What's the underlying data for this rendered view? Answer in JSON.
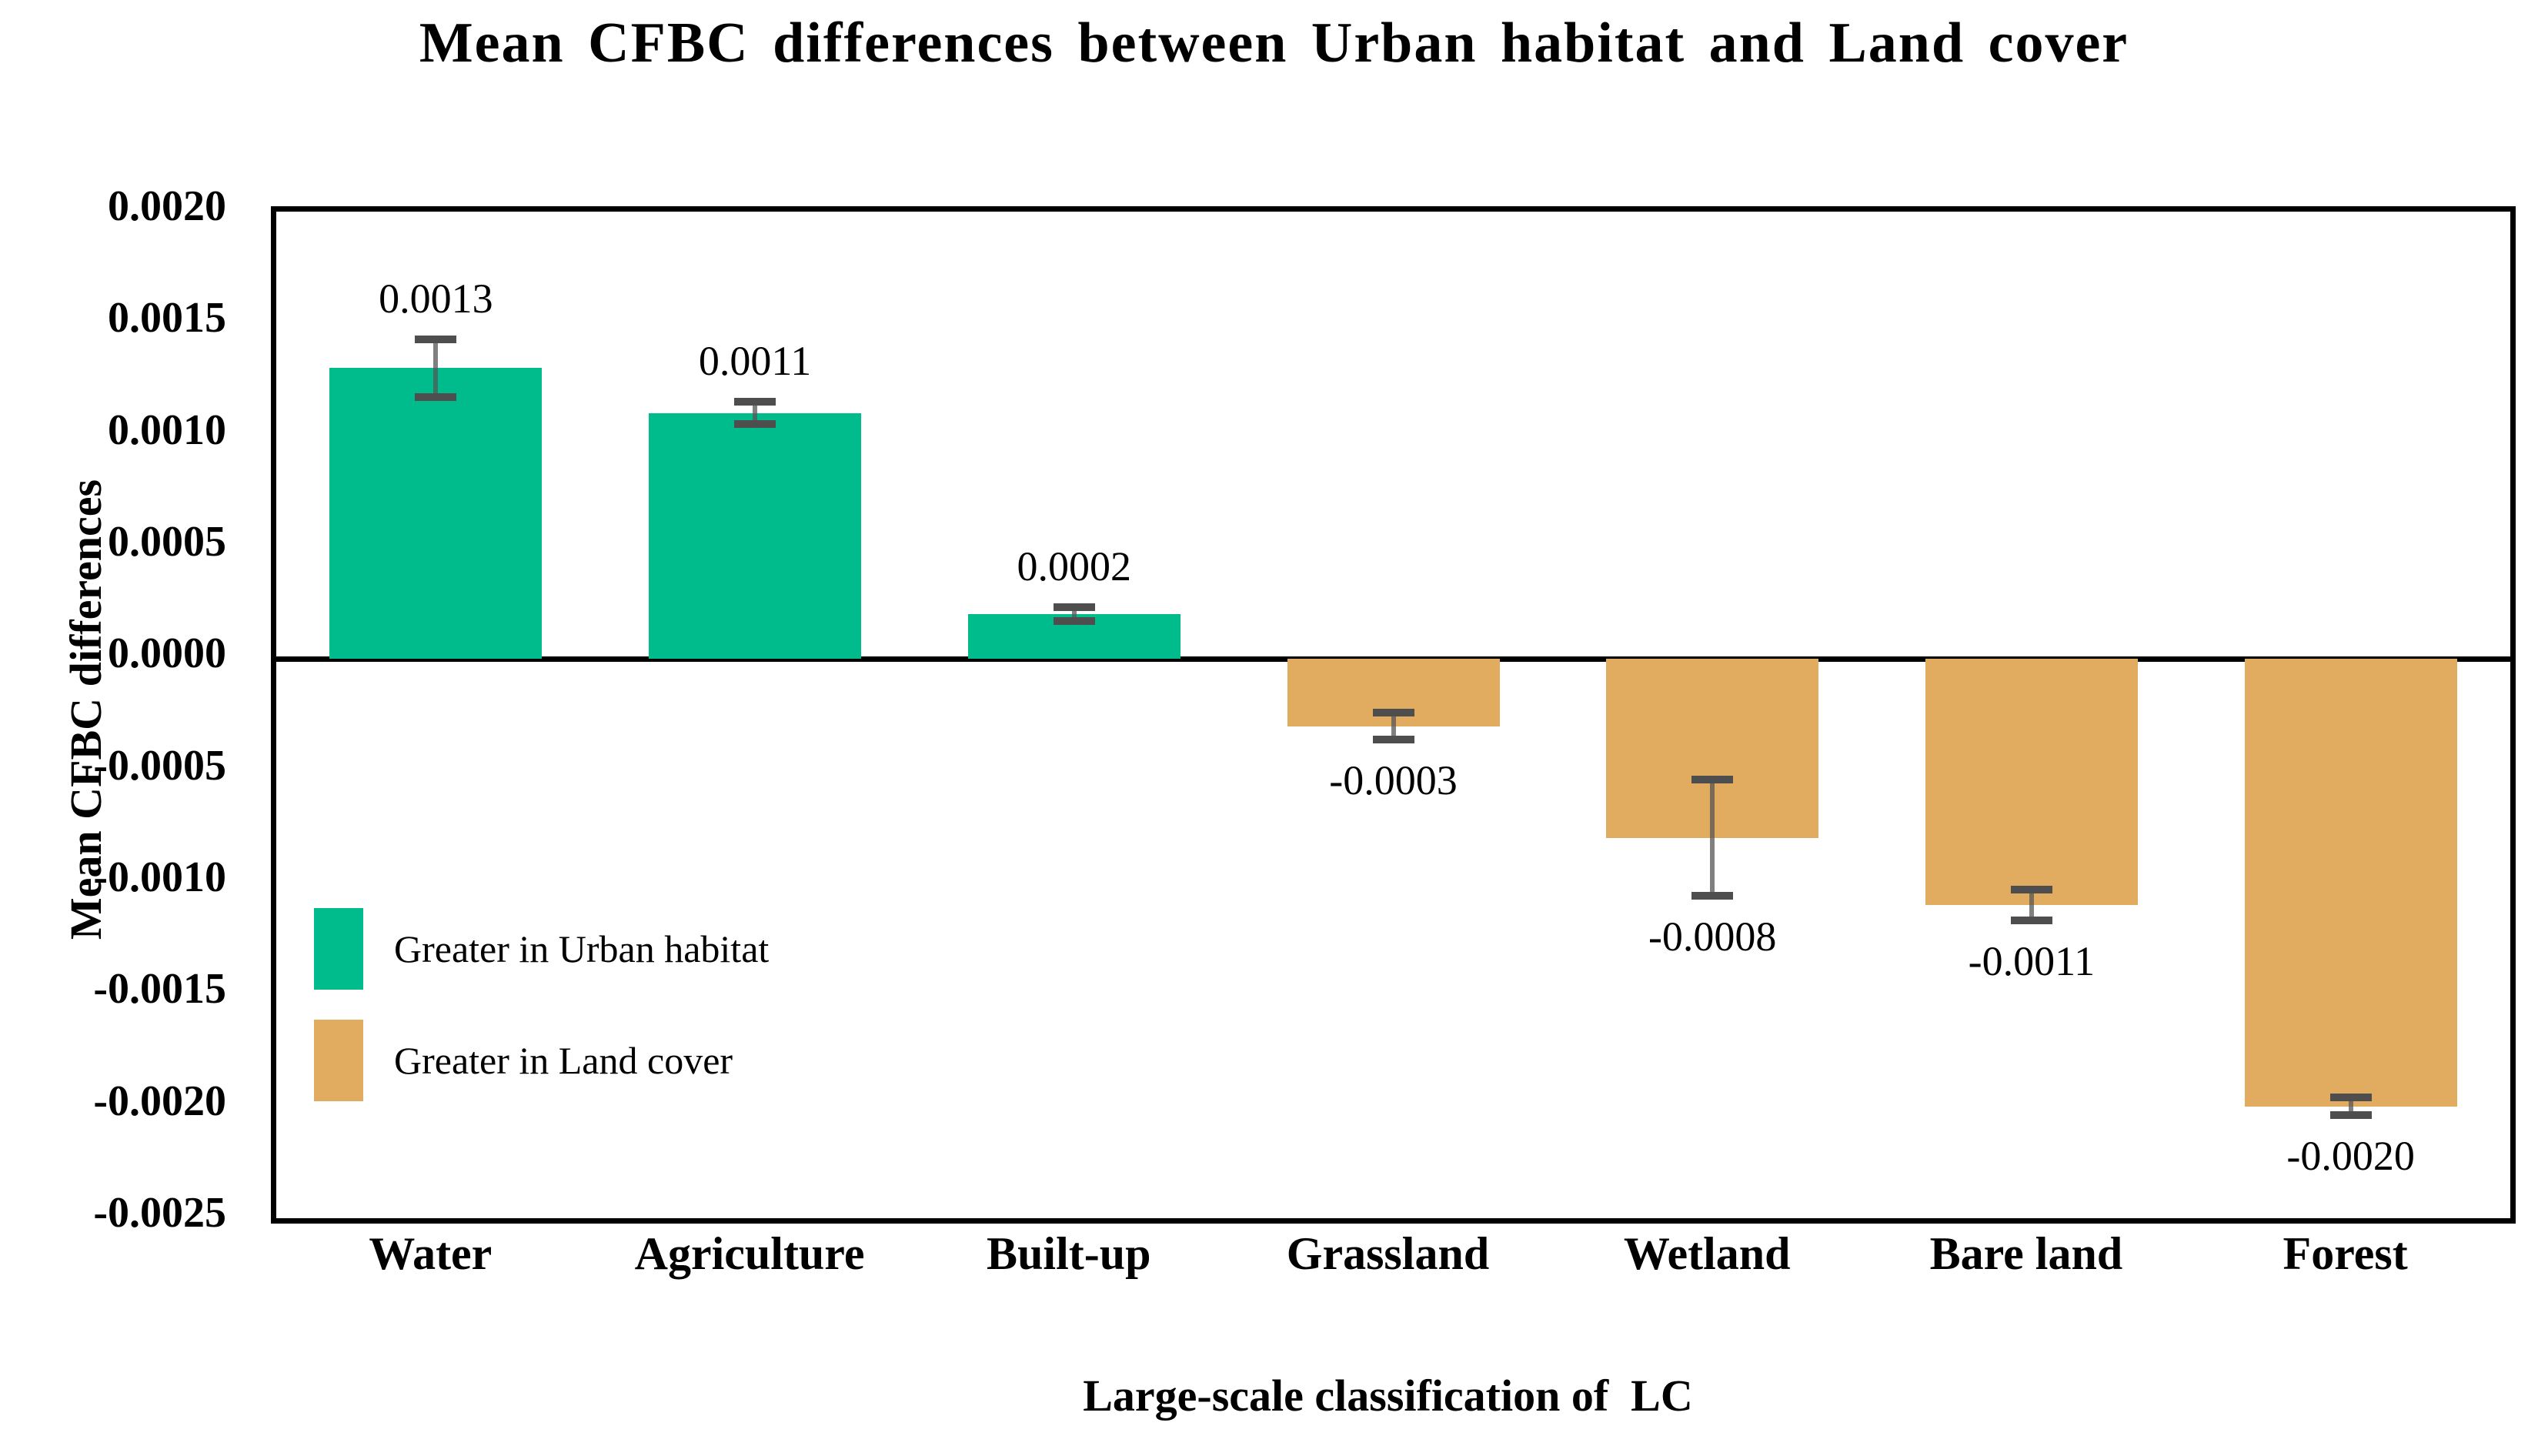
{
  "title": "Mean CFBC differences between Urban habitat and Land cover",
  "chart_data": {
    "type": "bar",
    "title": "Mean CFBC differences between Urban habitat and Land cover",
    "xlabel": "Large-scale classification of  LC",
    "ylabel": "Mean CFBC differences",
    "categories": [
      "Water",
      "Agriculture",
      "Built-up",
      "Grassland",
      "Wetland",
      "Bare land",
      "Forest"
    ],
    "values": [
      0.0013,
      0.0011,
      0.0002,
      -0.0003,
      -0.0008,
      -0.0011,
      -0.002
    ],
    "value_labels": [
      "0.0013",
      "0.0011",
      "0.0002",
      "-0.0003",
      "-0.0008",
      "-0.0011",
      "-0.0020"
    ],
    "errors": [
      0.00013,
      5e-05,
      3e-05,
      6e-05,
      0.00026,
      7e-05,
      4e-05
    ],
    "ylim": [
      -0.0025,
      0.002
    ],
    "ytick_labels": [
      "0.0020",
      "0.0015",
      "0.0010",
      "0.0005",
      "0.0000",
      "-0.0005",
      "-0.0010",
      "-0.0015",
      "-0.0020",
      "-0.0025"
    ],
    "grid": false,
    "legend_position": "lower-left-inside",
    "legend": [
      {
        "label": "Greater in Urban habitat",
        "color": "#00BC8C"
      },
      {
        "label": "Greater in Land cover",
        "color": "#E1AC5F"
      }
    ],
    "colors": {
      "positive_bar": "#00BC8C",
      "negative_bar": "#E1AC5F",
      "error_cap": "#4E4E4E",
      "error_stem": "#6E6E6E",
      "axis_frame": "#000000",
      "zero_line": "#000000"
    }
  }
}
